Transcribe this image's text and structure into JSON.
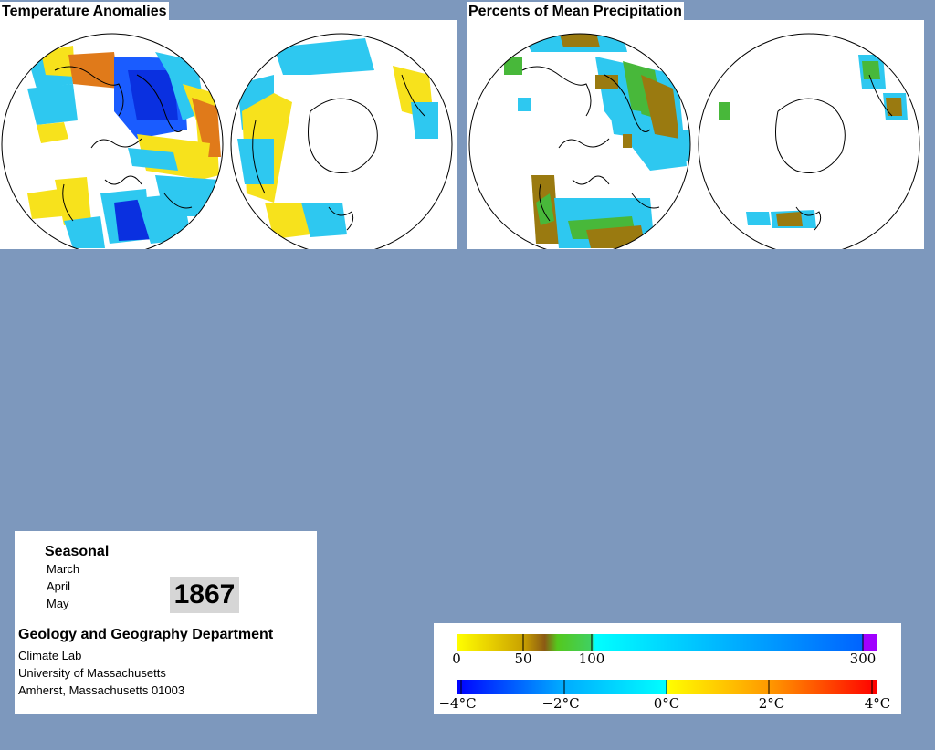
{
  "temperature_panel": {
    "title": "Temperature Anomalies"
  },
  "precip_panel": {
    "title": "Percents of Mean Precipitation"
  },
  "info": {
    "period_type": "Seasonal",
    "months": [
      "March",
      "April",
      "May"
    ],
    "year": "1867",
    "department": "Geology and Geography Department",
    "lab": "Climate Lab",
    "university": "University of Massachusetts",
    "address": "Amherst, Massachusetts 01003"
  },
  "legend": {
    "precipitation": {
      "ticks": [
        "0",
        "50",
        "100",
        "300"
      ],
      "colors": [
        "#ffff00",
        "#c8a000",
        "#8b5a14",
        "#54c81e",
        "#00ffff",
        "#0064ff",
        "#a000ff"
      ]
    },
    "temperature": {
      "ticks": [
        "−4°C",
        "−2°C",
        "0°C",
        "2°C",
        "4°C"
      ],
      "colors": [
        "#0000ff",
        "#00aaff",
        "#00ffff",
        "#ffff00",
        "#ff9600",
        "#ff0000"
      ]
    }
  },
  "colors": {
    "background": "#7d98bd",
    "cold": "#1a5cff",
    "cool": "#2ec8f0",
    "warm": "#f7e21c",
    "hot": "#e07a1a",
    "dry": "#9a7a10",
    "wet": "#48b83a"
  }
}
